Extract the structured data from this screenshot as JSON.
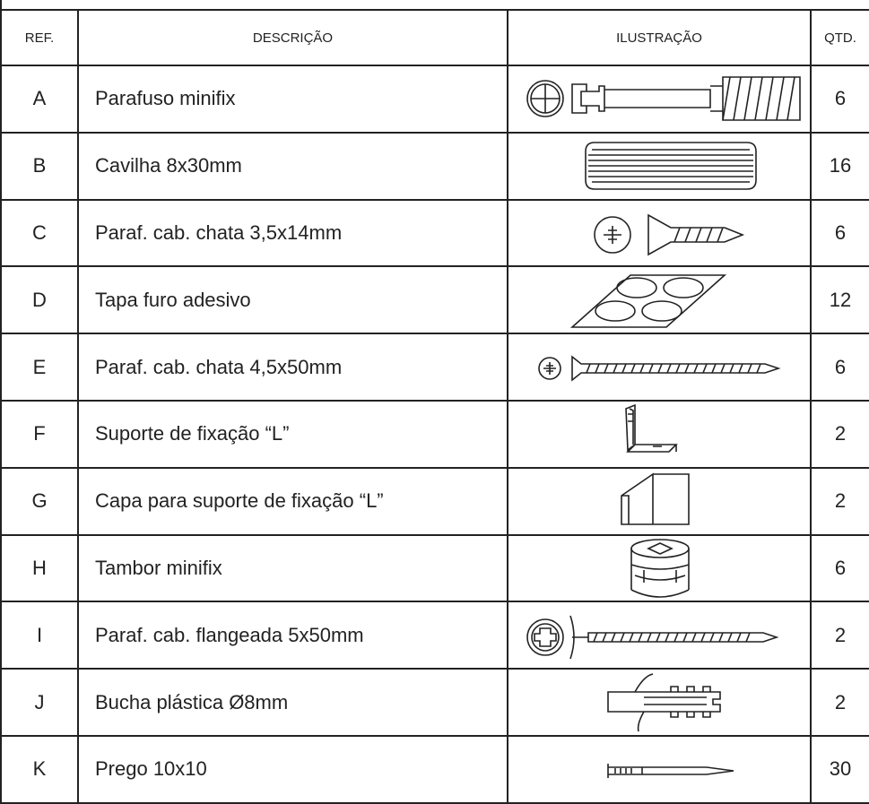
{
  "table": {
    "header": [
      "REF.",
      "DESCRIÇÃO",
      "ILUSTRAÇÃO",
      "QTD."
    ],
    "rows": [
      {
        "ref": "A",
        "description": "Parafuso minifix",
        "qty": 6
      },
      {
        "ref": "B",
        "description": "Cavilha 8x30mm",
        "qty": 16
      },
      {
        "ref": "C",
        "description": "Paraf. cab. chata 3,5x14mm",
        "qty": 6
      },
      {
        "ref": "D",
        "description": "Tapa furo adesivo",
        "qty": 12
      },
      {
        "ref": "E",
        "description": "Paraf. cab. chata 4,5x50mm",
        "qty": 6
      },
      {
        "ref": "F",
        "description": "Suporte de fixação “L”",
        "qty": 2
      },
      {
        "ref": "G",
        "description": "Capa para suporte de fixação “L”",
        "qty": 2
      },
      {
        "ref": "H",
        "description": "Tambor minifix",
        "qty": 6
      },
      {
        "ref": "I",
        "description": "Paraf. cab. flangeada 5x50mm",
        "qty": 2
      },
      {
        "ref": "J",
        "description": "Bucha plástica Ø8mm",
        "qty": 2
      },
      {
        "ref": "K",
        "description": "Prego 10x10",
        "qty": 30
      }
    ]
  }
}
